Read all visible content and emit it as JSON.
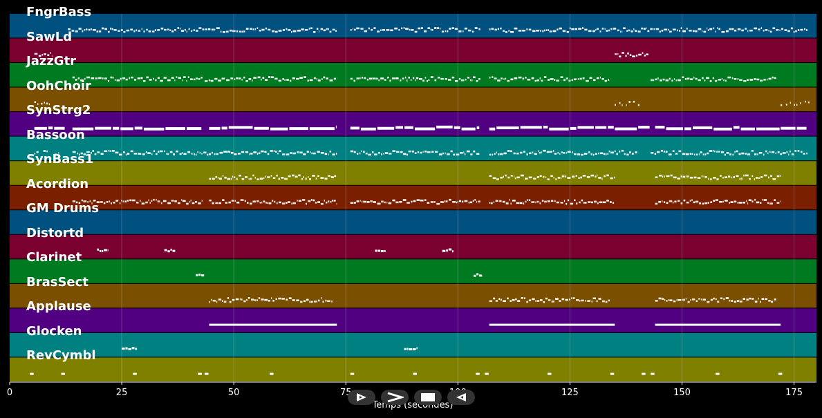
{
  "chart_data": {
    "type": "piano-roll",
    "title": "",
    "xlabel": "Temps (secondes)",
    "ylabel": "",
    "xlim": [
      0,
      180
    ],
    "x_ticks": [
      0,
      25,
      50,
      75,
      100,
      125,
      150,
      175
    ],
    "grid": true,
    "tracks": [
      {
        "name": "FngrBass",
        "color": "#005080",
        "segments": [
          [
            13,
            73
          ],
          [
            76,
            105
          ],
          [
            107,
            178
          ]
        ],
        "style": "dense-notes"
      },
      {
        "name": "SawLd",
        "color": "#7a0030",
        "segments": [
          [
            5.5,
            9.5
          ],
          [
            135,
            142.5
          ]
        ],
        "style": "dense-notes"
      },
      {
        "name": "JazzGtr",
        "color": "#007a20",
        "segments": [
          [
            14,
            43
          ],
          [
            43.5,
            73
          ],
          [
            76,
            105
          ],
          [
            107,
            134
          ],
          [
            143,
            171
          ]
        ],
        "style": "dense-notes"
      },
      {
        "name": "OohChoir",
        "color": "#7a5000",
        "segments": [
          [
            5.5,
            9
          ],
          [
            135,
            141
          ],
          [
            172,
            179
          ]
        ],
        "style": "sparse-notes"
      },
      {
        "name": "SynStrg2",
        "color": "#500080",
        "segments": [
          [
            5.5,
            12.5
          ],
          [
            14,
            43
          ],
          [
            44.5,
            73
          ],
          [
            76,
            105
          ],
          [
            107,
            135
          ],
          [
            135,
            143
          ],
          [
            144,
            172
          ],
          [
            172,
            178
          ]
        ],
        "style": "long-notes"
      },
      {
        "name": "Bassoon",
        "color": "#008080",
        "segments": [
          [
            5.5,
            6.5
          ],
          [
            7.5,
            8.5
          ],
          [
            10,
            11
          ],
          [
            14,
            73
          ],
          [
            76,
            105
          ],
          [
            107,
            140
          ],
          [
            143,
            178
          ]
        ],
        "style": "dense-notes"
      },
      {
        "name": "SynBass1",
        "color": "#808000",
        "segments": [
          [
            44.5,
            73
          ],
          [
            107,
            135
          ],
          [
            144,
            172
          ]
        ],
        "style": "dense-notes"
      },
      {
        "name": "Acordion",
        "color": "#7a2000",
        "segments": [
          [
            14,
            43
          ],
          [
            44.5,
            73
          ],
          [
            76,
            105
          ],
          [
            107,
            135
          ],
          [
            144,
            172
          ]
        ],
        "style": "dense-notes"
      },
      {
        "name": "GM Drums",
        "color": "#005080",
        "segments": [],
        "style": "empty"
      },
      {
        "name": "Distortd",
        "color": "#7a0030",
        "segments": [
          [
            19.5,
            22
          ],
          [
            34.5,
            37
          ],
          [
            81.5,
            84
          ],
          [
            96.5,
            99
          ]
        ],
        "style": "short-runs"
      },
      {
        "name": "Clarinet",
        "color": "#007a20",
        "segments": [
          [
            41.5,
            43.5
          ],
          [
            103.5,
            105.5
          ]
        ],
        "style": "short-runs"
      },
      {
        "name": "BrasSect",
        "color": "#7a5000",
        "segments": [
          [
            44.5,
            72
          ],
          [
            107,
            134
          ],
          [
            144,
            171
          ]
        ],
        "style": "dense-notes"
      },
      {
        "name": "Applause",
        "color": "#500080",
        "segments": [
          [
            44.5,
            73
          ],
          [
            107,
            135
          ],
          [
            144,
            172
          ]
        ],
        "style": "solid-line"
      },
      {
        "name": "Glocken",
        "color": "#008080",
        "segments": [
          [
            25,
            28.5
          ],
          [
            88,
            91
          ]
        ],
        "style": "short-runs"
      },
      {
        "name": "RevCymbl",
        "color": "#808000",
        "segments": [
          [
            4.5,
            5.5
          ],
          [
            11.5,
            12.5
          ],
          [
            27.5,
            28.5
          ],
          [
            42,
            43
          ],
          [
            43.5,
            44.5
          ],
          [
            58,
            59
          ],
          [
            76,
            77
          ],
          [
            90,
            91
          ],
          [
            104,
            105
          ],
          [
            106,
            107
          ],
          [
            120,
            121
          ],
          [
            134,
            135
          ],
          [
            141,
            142
          ],
          [
            143,
            144
          ],
          [
            157.5,
            158.5
          ],
          [
            171.5,
            172.5
          ]
        ],
        "style": "dots"
      }
    ]
  },
  "controls": {
    "play_icon": "play-outline-icon",
    "forward_icon": "chevron-right-icon",
    "stop_icon": "stop-icon",
    "rewind_icon": "rewind-outline-icon"
  }
}
